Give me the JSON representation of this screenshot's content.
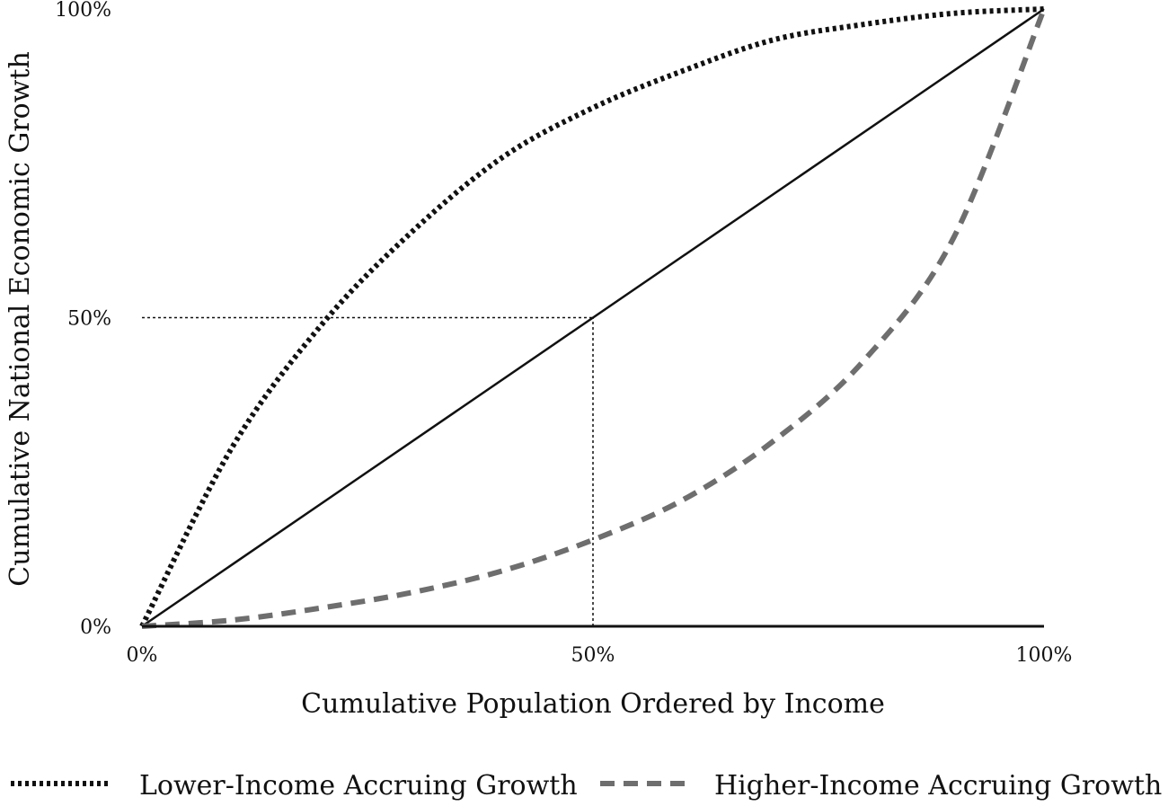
{
  "chart_data": {
    "type": "line",
    "xlabel": "Cumulative Population Ordered by Income",
    "ylabel": "Cumulative National Economic Growth",
    "xlim": [
      0,
      100
    ],
    "ylim": [
      0,
      100
    ],
    "x_ticks": [
      "0%",
      "50%",
      "100%"
    ],
    "y_ticks": [
      "0%",
      "50%",
      "100%"
    ],
    "x_tick_values": [
      0,
      50,
      100
    ],
    "y_tick_values": [
      0,
      50,
      100
    ],
    "grid": false,
    "legend_position": "bottom",
    "reference_lines": [
      {
        "kind": "horizontal",
        "y": 50,
        "x_from": 0,
        "x_to": 50,
        "style": "dotted"
      },
      {
        "kind": "vertical",
        "x": 50,
        "y_from": 0,
        "y_to": 50,
        "style": "dotted"
      }
    ],
    "series": [
      {
        "role": "equality",
        "style": "solid",
        "color": "#111111",
        "x": [
          0,
          100
        ],
        "y": [
          0,
          100
        ]
      },
      {
        "name": "Lower-Income Accruing Growth",
        "style": "dotted",
        "color": "#111111",
        "x": [
          0,
          10,
          20,
          30,
          40,
          50,
          60,
          70,
          80,
          90,
          100
        ],
        "y": [
          0,
          29,
          49,
          64,
          76,
          84,
          90,
          95,
          97.5,
          99.3,
          100
        ]
      },
      {
        "name": "Higher-Income Accruing Growth",
        "style": "dashed",
        "color": "#6e6e6e",
        "x": [
          0,
          10,
          20,
          30,
          40,
          50,
          60,
          70,
          80,
          90,
          100
        ],
        "y": [
          0,
          1,
          3,
          5.5,
          9,
          14,
          20.5,
          30,
          43,
          63,
          100
        ]
      }
    ]
  }
}
